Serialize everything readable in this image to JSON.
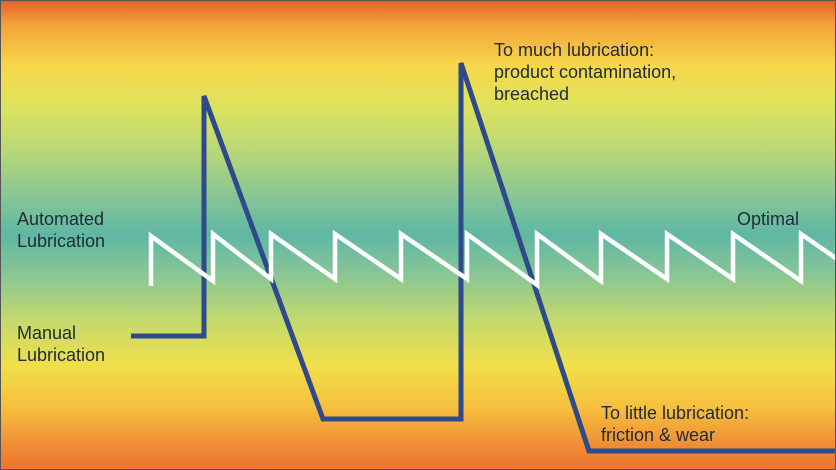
{
  "labels": {
    "automated": "Automated\nLubrication",
    "manual": "Manual\nLubrication",
    "optimal": "Optimal",
    "too_much": "To much lubrication:\nproduct contamination,\nbreached",
    "too_little": "To little lubrication:\nfriction & wear"
  },
  "colors": {
    "manual_line": "#2f4a8a",
    "automated_line": "#ffffff"
  }
}
